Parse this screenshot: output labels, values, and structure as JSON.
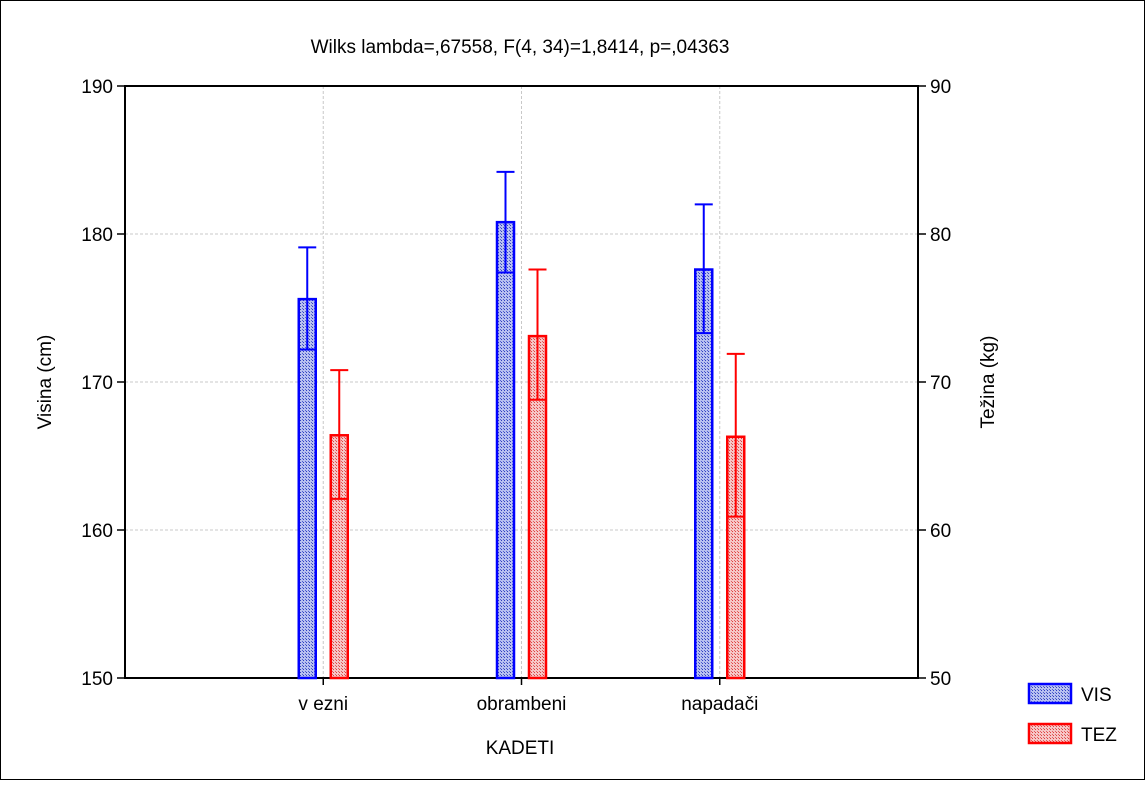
{
  "chart_data": {
    "type": "bar",
    "title": "Wilks lambda=,67558, F(4, 34)=1,8414, p=,04363",
    "xlabel": "KADETI",
    "ylabel": "Visina (cm)",
    "ylabel_right": "Težina (kg)",
    "categories": [
      "v ezni",
      "obrambeni",
      "napadači"
    ],
    "ylim": [
      150,
      190
    ],
    "yticks": [
      "150",
      "160",
      "170",
      "180",
      "190"
    ],
    "y2lim": [
      50,
      90
    ],
    "y2ticks": [
      "50",
      "60",
      "70",
      "80",
      "90"
    ],
    "grid": true,
    "legend_position": "bottom-right",
    "series": [
      {
        "name": "VIS",
        "axis": "left",
        "color": "#0000ff",
        "fill": "#9aa6e6",
        "values": [
          175.6,
          180.8,
          177.6
        ],
        "ci_low": [
          172.2,
          177.4,
          173.3
        ],
        "ci_high": [
          179.1,
          184.2,
          182.0
        ]
      },
      {
        "name": "TEZ",
        "axis": "right",
        "color": "#ff0000",
        "fill": "#f0a8a8",
        "values": [
          66.4,
          73.1,
          66.3
        ],
        "ci_low": [
          62.1,
          68.8,
          60.9
        ],
        "ci_high": [
          70.8,
          77.6,
          71.9
        ]
      }
    ]
  }
}
